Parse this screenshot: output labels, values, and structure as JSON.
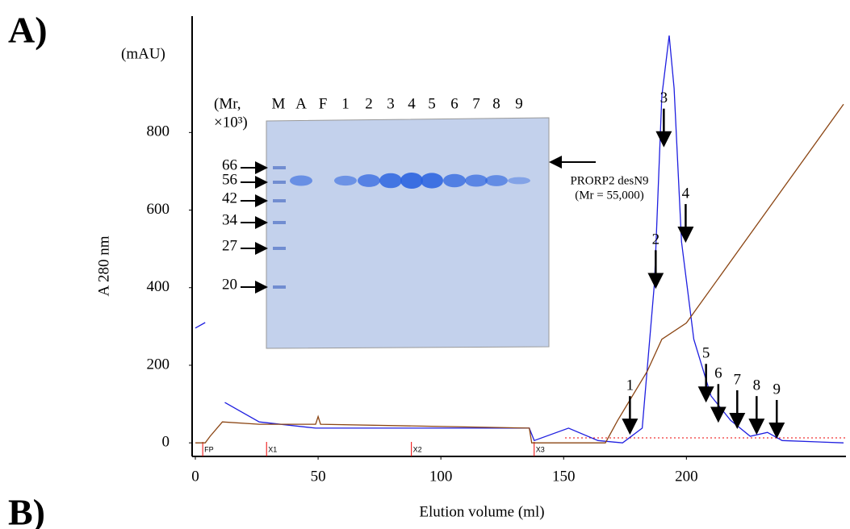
{
  "chart_data": {
    "type": "line",
    "panel_labels": [
      "A)",
      "B)"
    ],
    "y_unit": "(mAU)",
    "ylabel": "A 280 nm",
    "xlabel": "Elution volume (ml)",
    "xlim": [
      0,
      264
    ],
    "ylim": [
      -35,
      1100
    ],
    "xticks": [
      0,
      50,
      100,
      150,
      200
    ],
    "yticks": [
      0,
      200,
      400,
      600,
      800
    ],
    "series": [
      {
        "color": "#1f1fe0",
        "x": [
          0,
          4,
          4.5,
          12,
          26,
          49,
          136,
          138,
          152,
          164,
          174,
          182,
          187,
          190,
          193,
          195,
          198,
          203,
          210,
          218,
          226,
          233,
          239,
          264
        ],
        "values": [
          296,
          310,
          null,
          104,
          54,
          38,
          38,
          6,
          38,
          6,
          0,
          38,
          413,
          894,
          1050,
          914,
          518,
          267,
          121,
          58,
          17,
          27,
          6,
          0
        ]
      },
      {
        "color": "#8b4513",
        "x": [
          0,
          4,
          6,
          11,
          26,
          49,
          50,
          51,
          136,
          137,
          167,
          172,
          184,
          190,
          200,
          264
        ],
        "values": [
          0,
          0,
          17,
          54,
          48,
          48,
          68,
          48,
          38,
          0,
          0,
          58,
          184,
          267,
          309,
          873
        ]
      }
    ],
    "fractions": [
      {
        "label": "1",
        "x": 177,
        "y": 27
      },
      {
        "label": "2",
        "x": 187.5,
        "y": 403
      },
      {
        "label": "3",
        "x": 190.8,
        "y": 768
      },
      {
        "label": "4",
        "x": 199.7,
        "y": 522
      },
      {
        "label": "5",
        "x": 208,
        "y": 110
      },
      {
        "label": "6",
        "x": 213,
        "y": 58
      },
      {
        "label": "7",
        "x": 220.7,
        "y": 42
      },
      {
        "label": "8",
        "x": 228.6,
        "y": 27
      },
      {
        "label": "9",
        "x": 236.8,
        "y": 17
      }
    ],
    "events": [
      {
        "label": "FP",
        "x": 3
      },
      {
        "label": "X1",
        "x": 29
      },
      {
        "label": "X2",
        "x": 88
      },
      {
        "label": "X3",
        "x": 138
      }
    ],
    "gel": {
      "lanes": [
        "M",
        "A",
        "F",
        "1",
        "2",
        "3",
        "4",
        "5",
        "6",
        "7",
        "8",
        "9"
      ],
      "mr_label_1": "(Mr,",
      "mr_label_2": "×10³)",
      "markers": [
        66,
        56,
        42,
        34,
        27,
        20
      ],
      "protein_label": "PRORP2 desN9",
      "protein_mr": "(Mr = 55,000)"
    }
  }
}
